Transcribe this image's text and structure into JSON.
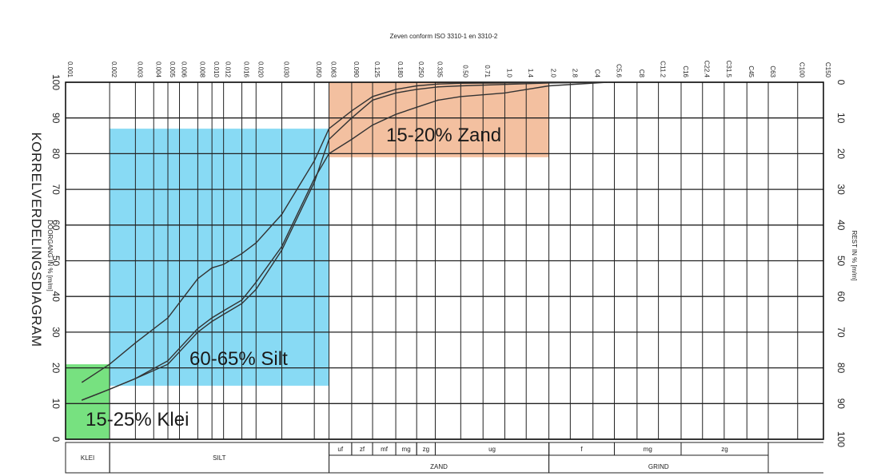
{
  "chart_data": {
    "type": "line",
    "title": "KORRELVERDELINGSDIAGRAM",
    "top_label": "Zeven conform ISO 3310-1 en 3310-2",
    "ylabel_left": "DOORGANG IN % [m/m]",
    "ylabel_right": "REST IN % [m/m]",
    "xscale": "log",
    "xlim": [
      0.001,
      150
    ],
    "ylim": [
      0,
      100
    ],
    "grid": true,
    "sieve_labels": [
      "0.001",
      "0.002",
      "0.003",
      "0.004",
      "0.005",
      "0.006",
      "0.008",
      "0.010",
      "0.012",
      "0.016",
      "0.020",
      "0.030",
      "0.050",
      "0.063",
      "0.090",
      "0.125",
      "0.180",
      "0.250",
      "0.335",
      "0.50",
      "0.71",
      "1.0",
      "1.4",
      "2.0",
      "2.8",
      "C4",
      "C5.6",
      "C8",
      "C11.2",
      "C16",
      "C22.4",
      "C31.5",
      "C45",
      "C63",
      "C100",
      "C150"
    ],
    "sieve_positions": [
      0.001,
      0.002,
      0.003,
      0.004,
      0.005,
      0.006,
      0.008,
      0.01,
      0.012,
      0.016,
      0.02,
      0.03,
      0.05,
      0.063,
      0.09,
      0.125,
      0.18,
      0.25,
      0.335,
      0.5,
      0.71,
      1.0,
      1.4,
      2.0,
      2.8,
      4,
      5.6,
      8,
      11.2,
      16,
      22.4,
      31.5,
      45,
      63,
      100,
      150
    ],
    "y_left_ticks": [
      0,
      10,
      20,
      30,
      40,
      50,
      60,
      70,
      80,
      90,
      100
    ],
    "y_right_ticks": [
      100,
      90,
      80,
      70,
      60,
      50,
      40,
      30,
      20,
      10,
      0
    ],
    "series": [
      {
        "x": [
          0.0013,
          0.002,
          0.003,
          0.005,
          0.008,
          0.01,
          0.012,
          0.016,
          0.02,
          0.03,
          0.05,
          0.063,
          0.09,
          0.125,
          0.18,
          0.25,
          0.35,
          0.5,
          1,
          2,
          5
        ],
        "y": [
          16,
          21,
          27,
          34,
          45,
          48,
          49,
          52,
          55,
          63,
          78,
          87,
          92,
          96,
          98,
          99,
          99.5,
          99.7,
          99.8,
          100,
          100
        ]
      },
      {
        "x": [
          0.0013,
          0.002,
          0.003,
          0.005,
          0.008,
          0.01,
          0.012,
          0.016,
          0.02,
          0.03,
          0.05,
          0.063,
          0.09,
          0.125,
          0.18,
          0.25,
          0.35,
          0.5,
          1,
          2,
          5
        ],
        "y": [
          11,
          14,
          17,
          21,
          30,
          33,
          35,
          38,
          42,
          53,
          72,
          84,
          90,
          95,
          97,
          98,
          98.7,
          99,
          99.4,
          99.8,
          100
        ]
      },
      {
        "x": [
          0.0013,
          0.002,
          0.003,
          0.005,
          0.008,
          0.01,
          0.012,
          0.016,
          0.02,
          0.03,
          0.05,
          0.063,
          0.09,
          0.125,
          0.18,
          0.25,
          0.35,
          0.5,
          1,
          2,
          5
        ],
        "y": [
          11,
          14,
          17,
          22,
          31,
          34,
          36,
          39,
          44,
          54,
          73,
          80,
          84,
          88,
          91,
          93,
          95,
          96,
          97,
          99,
          100
        ]
      }
    ],
    "regions": [
      {
        "label": "15-25% Klei",
        "color": "#5fdc6a",
        "x": [
          0.001,
          0.002
        ],
        "y": [
          0,
          21
        ]
      },
      {
        "label": "60-65% Silt",
        "color": "#73d3f2",
        "x": [
          0.002,
          0.063
        ],
        "y": [
          15,
          87
        ]
      },
      {
        "label": "15-20% Zand",
        "color": "#f1b58f",
        "x": [
          0.063,
          2.0
        ],
        "y": [
          79,
          100
        ]
      }
    ],
    "classification": {
      "main": [
        {
          "label": "KLEI",
          "x": [
            0.001,
            0.002
          ]
        },
        {
          "label": "SILT",
          "x": [
            0.002,
            0.063
          ]
        },
        {
          "label": "ZAND",
          "x": [
            0.063,
            2.0
          ]
        },
        {
          "label": "GRIND",
          "x": [
            2.0,
            63
          ]
        }
      ],
      "sub": [
        {
          "label": "uf",
          "x": [
            0.063,
            0.09
          ]
        },
        {
          "label": "zf",
          "x": [
            0.09,
            0.125
          ]
        },
        {
          "label": "mf",
          "x": [
            0.125,
            0.18
          ]
        },
        {
          "label": "mg",
          "x": [
            0.18,
            0.25
          ]
        },
        {
          "label": "zg",
          "x": [
            0.25,
            0.335
          ]
        },
        {
          "label": "ug",
          "x": [
            0.335,
            2.0
          ]
        },
        {
          "label": "f",
          "x": [
            2.0,
            5.6
          ]
        },
        {
          "label": "mg",
          "x": [
            5.6,
            16
          ]
        },
        {
          "label": "zg",
          "x": [
            16,
            63
          ]
        }
      ]
    }
  }
}
